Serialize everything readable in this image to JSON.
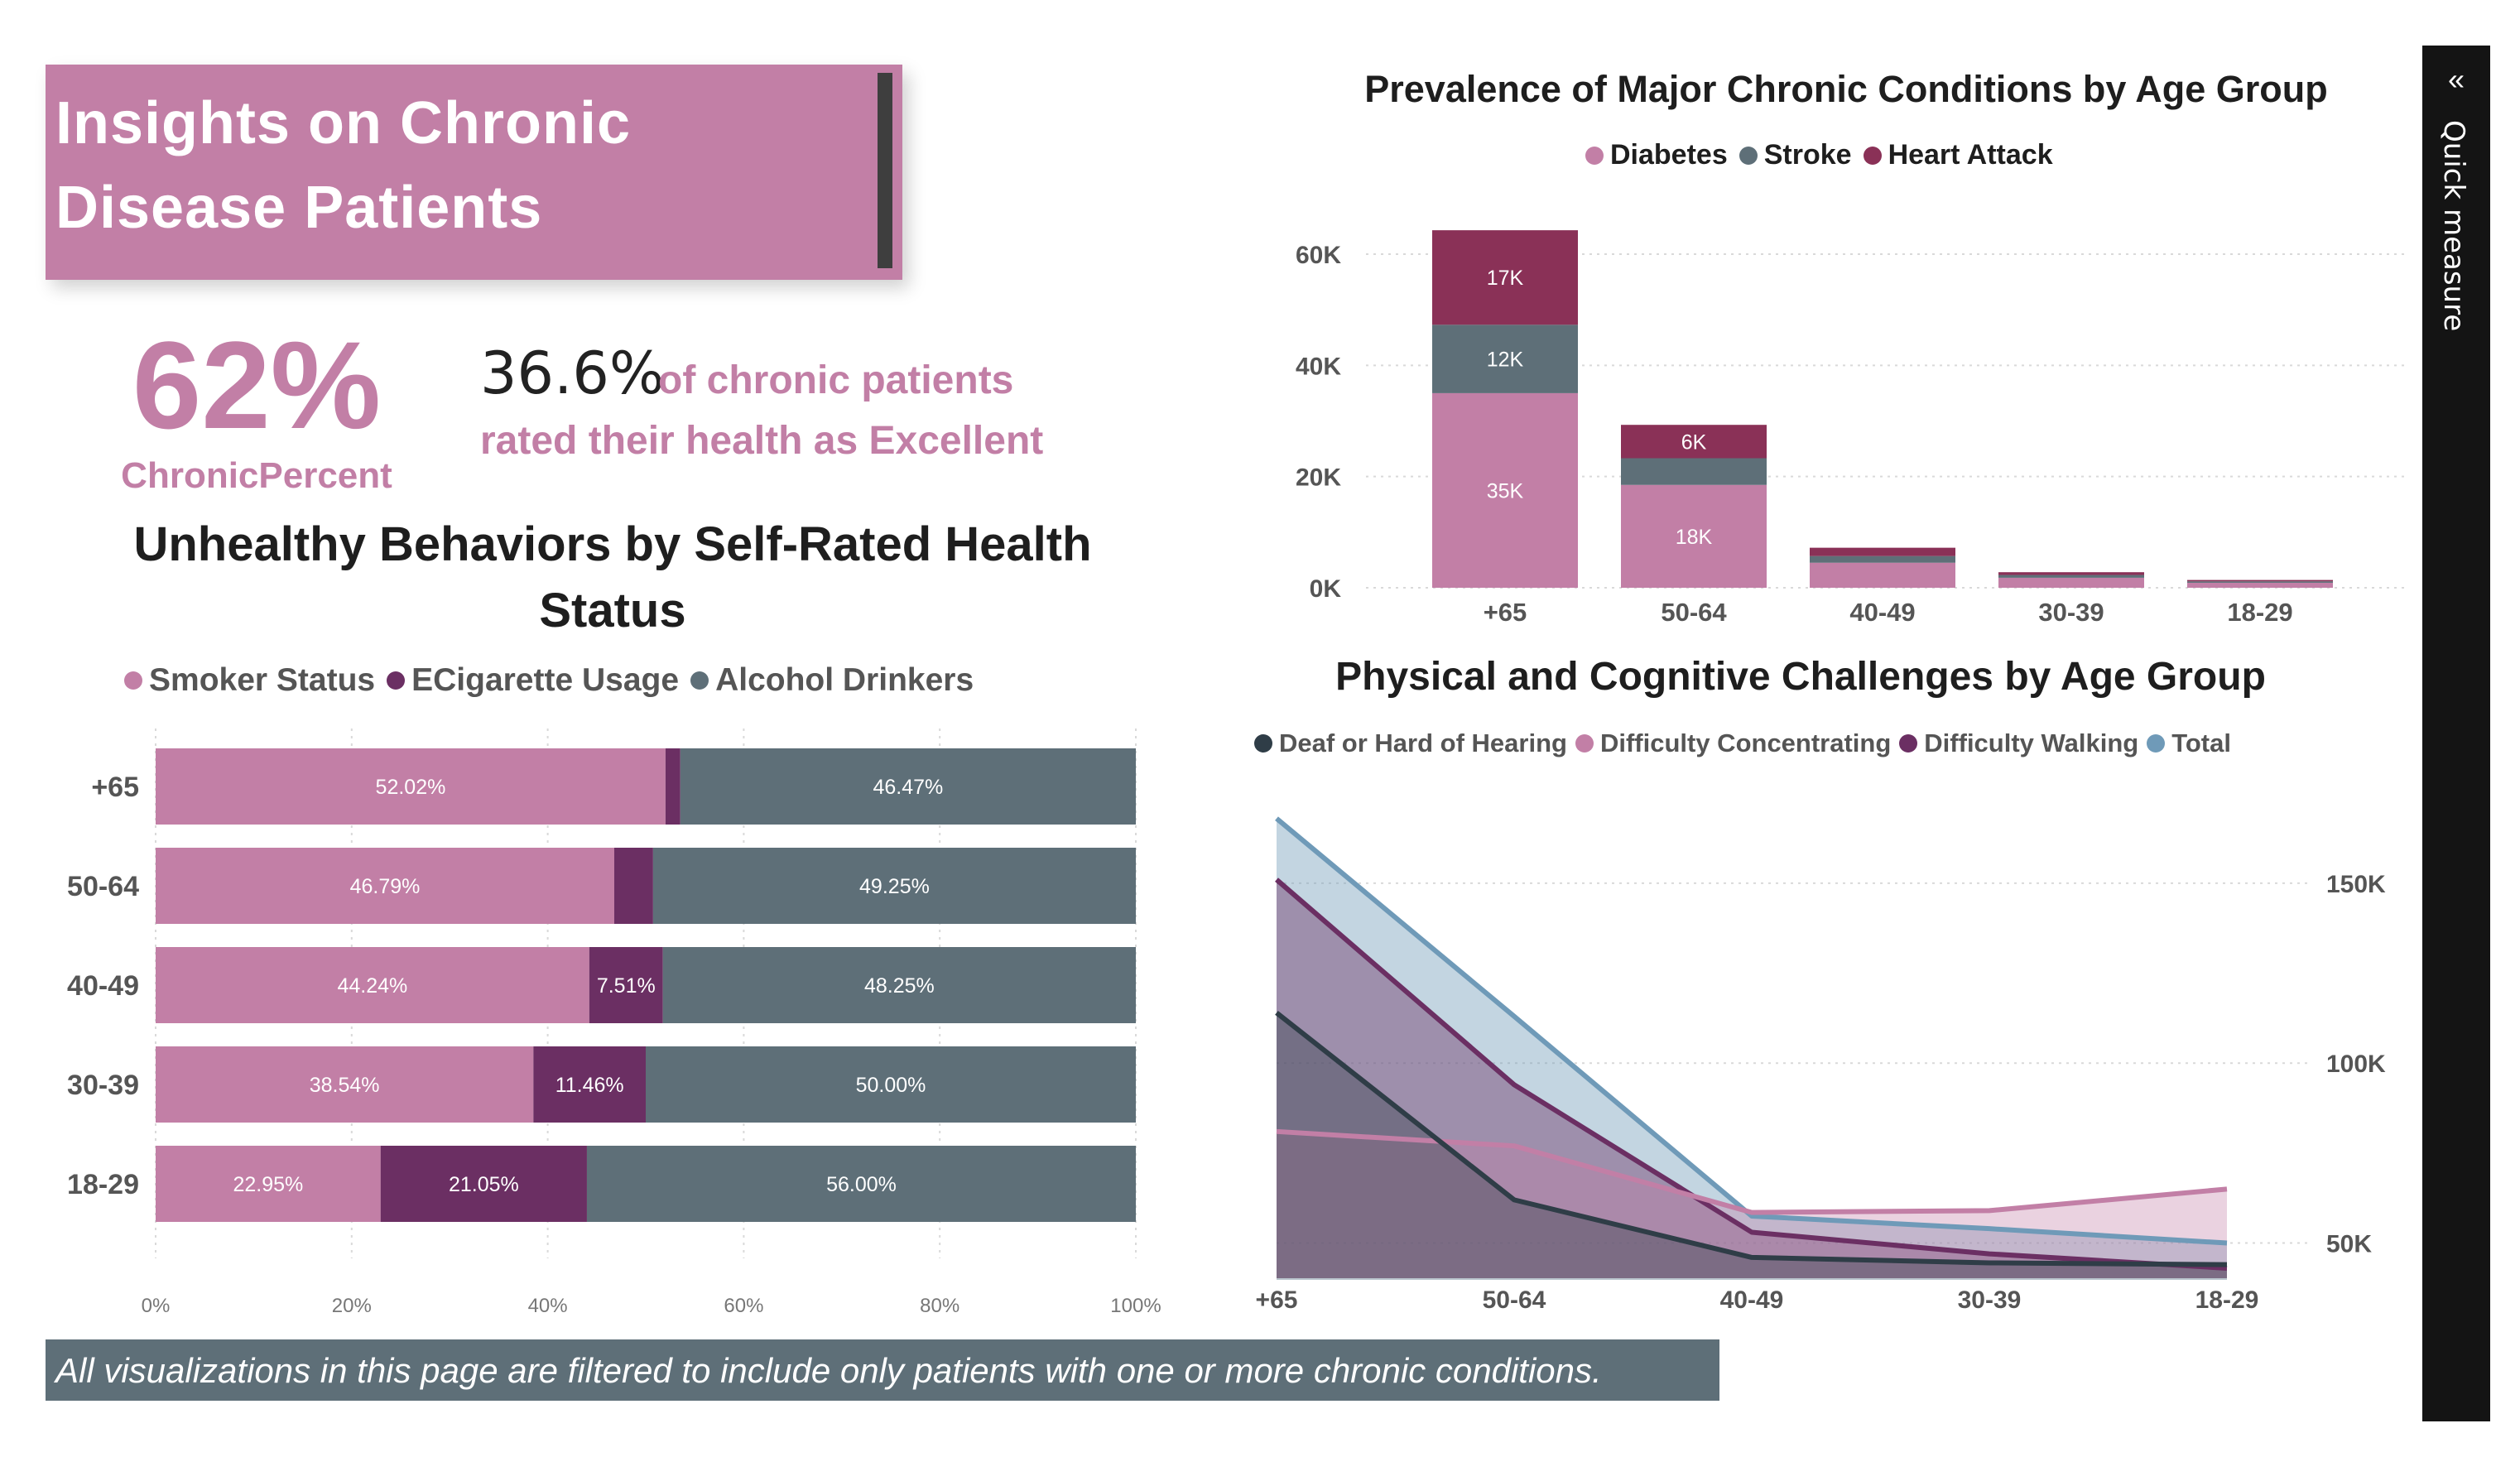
{
  "header": {
    "title_line1": "Insights on Chronic",
    "title_line2": "Disease Patients"
  },
  "kpi": {
    "value": "62%",
    "label": "ChronicPercent",
    "excellent_value": "36.6%",
    "excellent_text_line1": "of chronic patients",
    "excellent_text_line2": "rated their health as Excellent"
  },
  "footer_note": "All visualizations in this page are filtered to include only patients with one or more chronic conditions.",
  "quick_measure": {
    "label": "Quick measure",
    "icon": "double-chevron-left-icon"
  },
  "colors": {
    "pink": "#c27fa6",
    "purple": "#6b2f63",
    "slate": "#5e6f78",
    "maroon": "#8a3157",
    "dark": "#2f3d47",
    "blue": "#6f9ab8"
  },
  "chart_data": [
    {
      "id": "behaviors",
      "type": "bar",
      "orientation": "horizontal",
      "stacked": "100%",
      "title_line1": "Unhealthy Behaviors by Self-Rated Health",
      "title_line2": "Status",
      "categories": [
        "+65",
        "50-64",
        "40-49",
        "30-39",
        "18-29"
      ],
      "series": [
        {
          "name": "Smoker Status",
          "color": "#c27fa6",
          "values": [
            52.02,
            46.79,
            44.24,
            38.54,
            22.95
          ],
          "labels": [
            "52.02%",
            "46.79%",
            "44.24%",
            "38.54%",
            "22.95%"
          ]
        },
        {
          "name": "ECigarette Usage",
          "color": "#6b2f63",
          "values": [
            1.51,
            3.96,
            7.51,
            11.46,
            21.05
          ],
          "labels": [
            "",
            "",
            "7.51%",
            "11.46%",
            "21.05%"
          ]
        },
        {
          "name": "Alcohol Drinkers",
          "color": "#5e6f78",
          "values": [
            46.47,
            49.25,
            48.25,
            50.0,
            56.0
          ],
          "labels": [
            "46.47%",
            "49.25%",
            "48.25%",
            "50.00%",
            "56.00%"
          ]
        }
      ],
      "xticks": [
        "0%",
        "20%",
        "40%",
        "60%",
        "80%",
        "100%"
      ],
      "xlim": [
        0,
        100
      ],
      "legend": "top",
      "grid": true
    },
    {
      "id": "prevalence",
      "type": "bar",
      "orientation": "vertical",
      "stacked": true,
      "title": "Prevalence of Major Chronic Conditions by Age Group",
      "categories": [
        "+65",
        "50-64",
        "40-49",
        "30-39",
        "18-29"
      ],
      "series": [
        {
          "name": "Diabetes",
          "color": "#c27fa6",
          "values": [
            35000,
            18500,
            4500,
            1800,
            900
          ],
          "labels": [
            "35K",
            "18K",
            "",
            "",
            ""
          ]
        },
        {
          "name": "Stroke",
          "color": "#5e6f78",
          "values": [
            12300,
            4800,
            1200,
            500,
            250
          ],
          "labels": [
            "12K",
            "",
            "",
            "",
            ""
          ]
        },
        {
          "name": "Heart Attack",
          "color": "#8a3157",
          "values": [
            17000,
            6000,
            1500,
            500,
            250
          ],
          "labels": [
            "17K",
            "6K",
            "",
            "",
            ""
          ]
        }
      ],
      "yticks": [
        "0K",
        "20K",
        "40K",
        "60K"
      ],
      "ylim": [
        0,
        60000
      ],
      "legend": "top",
      "grid": true
    },
    {
      "id": "challenges",
      "type": "area",
      "title": "Physical and Cognitive Challenges by Age Group",
      "categories": [
        "+65",
        "50-64",
        "40-49",
        "30-39",
        "18-29"
      ],
      "series": [
        {
          "name": "Deaf or Hard of Hearing",
          "color": "#2f3d47",
          "values": [
            114000,
            62000,
            46000,
            44500,
            44000
          ]
        },
        {
          "name": "Difficulty Concentrating",
          "color": "#c27fa6",
          "values": [
            81000,
            77000,
            58500,
            59000,
            65000
          ]
        },
        {
          "name": "Difficulty Walking",
          "color": "#6b2f63",
          "values": [
            151000,
            94000,
            53000,
            47000,
            43000
          ]
        },
        {
          "name": "Total",
          "color": "#6f9ab8",
          "values": [
            168000,
            113000,
            57500,
            54000,
            50000
          ]
        }
      ],
      "yticks": [
        "50K",
        "100K",
        "150K"
      ],
      "ylim": [
        40000,
        170000
      ],
      "y_axis_position": "right",
      "legend": "top",
      "grid": true
    }
  ]
}
